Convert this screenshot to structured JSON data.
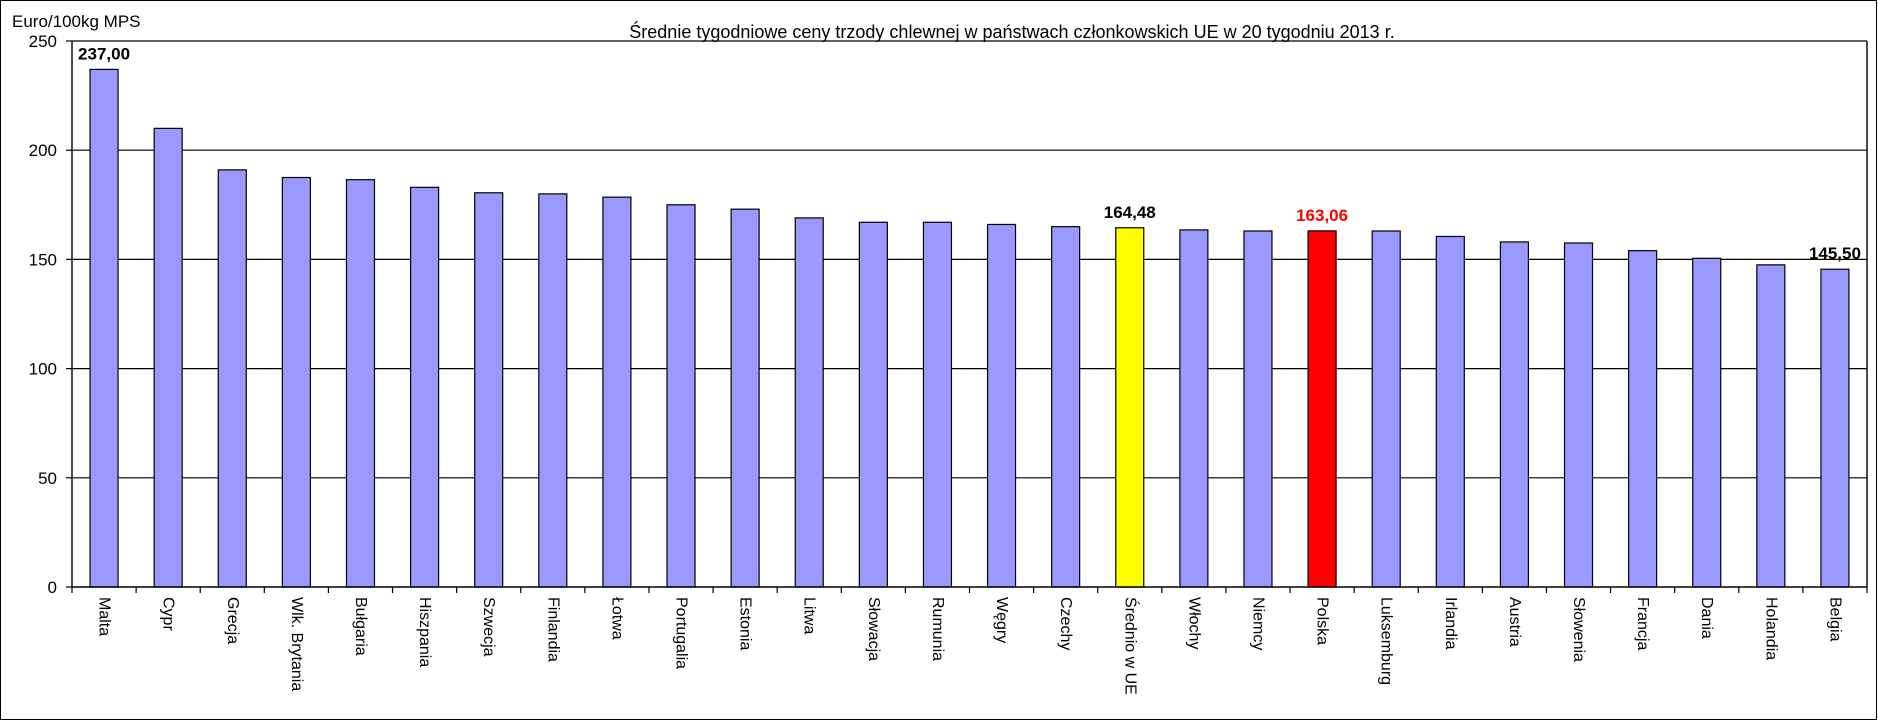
{
  "chart_data": {
    "type": "bar",
    "title": "Średnie tygodniowe ceny trzody chlewnej w państwach członkowskich UE w 20  tygodniu 2013 r.",
    "ylabel": "Euro/100kg MPS",
    "xlabel": "",
    "ylim": [
      0,
      250
    ],
    "yticks": [
      0,
      50,
      100,
      150,
      200,
      250
    ],
    "grid": true,
    "categories": [
      "Malta",
      "Cypr",
      "Grecja",
      "Wlk. Brytania",
      "Bułgaria",
      "Hiszpania",
      "Szwecja",
      "Finlandia",
      "Łotwa",
      "Portugalia",
      "Estonia",
      "Litwa",
      "Słowacja",
      "Rumunia",
      "Węgry",
      "Czechy",
      "Średnio w UE",
      "Włochy",
      "Niemcy",
      "Polska",
      "Luksemburg",
      "Irlandia",
      "Austria",
      "Słowenia",
      "Francja",
      "Dania",
      "Holandia",
      "Belgia"
    ],
    "values": [
      237.0,
      210.0,
      191.0,
      187.5,
      186.5,
      183.0,
      180.5,
      180.0,
      178.5,
      175.0,
      173.0,
      169.0,
      167.0,
      167.0,
      166.0,
      165.0,
      164.48,
      163.5,
      163.0,
      163.06,
      163.0,
      160.5,
      158.0,
      157.5,
      154.0,
      150.5,
      147.5,
      145.5
    ],
    "colors": {
      "default": "#9999ff",
      "average": "#ffff00",
      "highlight": "#ff0000",
      "label_default": "#000000",
      "label_highlight": "#ff0000"
    },
    "data_labels": [
      {
        "index": 0,
        "text": "237,00",
        "color": "#000000"
      },
      {
        "index": 16,
        "text": "164,48",
        "color": "#000000"
      },
      {
        "index": 19,
        "text": "163,06",
        "color": "#ff0000"
      },
      {
        "index": 27,
        "text": "145,50",
        "color": "#000000"
      }
    ],
    "bar_colors": {
      "16": "#ffff00",
      "19": "#ff0000"
    }
  }
}
